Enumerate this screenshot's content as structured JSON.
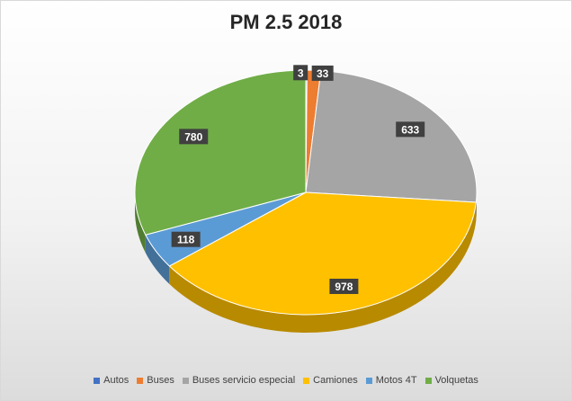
{
  "chart_data": {
    "type": "pie",
    "title": "PM 2.5 2018",
    "categories": [
      "Autos",
      "Buses",
      "Buses servicio especial",
      "Camiones",
      "Motos 4T",
      "Volquetas"
    ],
    "values": [
      3,
      33,
      633,
      978,
      118,
      780
    ],
    "data_labels": [
      "3",
      "33",
      "633",
      "978",
      "118",
      "780"
    ],
    "colors": [
      "#4472C4",
      "#ED7D31",
      "#A5A5A5",
      "#FFC000",
      "#5B9BD5",
      "#70AD47"
    ],
    "start_angle_deg": 0,
    "direction": "clockwise",
    "style": "3d",
    "legend_position": "bottom"
  }
}
